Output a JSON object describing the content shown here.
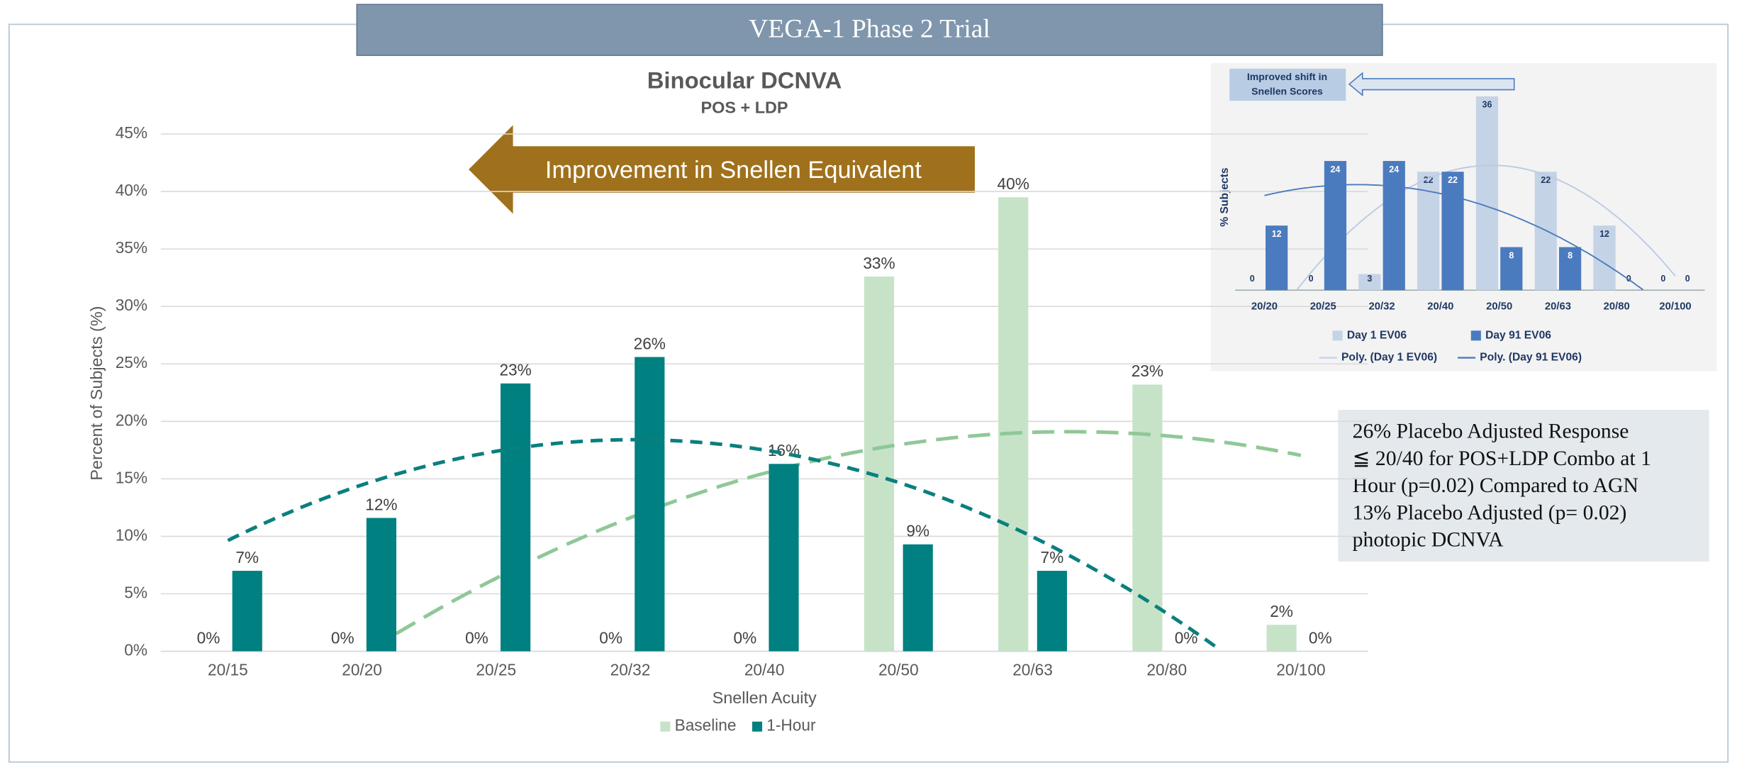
{
  "banner": "VEGA-1 Phase 2 Trial",
  "note": [
    "26% Placebo Adjusted Response",
    "≦ 20/40 for POS+LDP Combo at 1",
    "Hour (p=0.02) Compared to AGN",
    "13% Placebo Adjusted (p= 0.02)",
    "photopic DCNVA"
  ],
  "chart_data": [
    {
      "type": "bar",
      "title": "Binocular DCNVA",
      "subtitle": "POS + LDP",
      "annotation": "Improvement in Snellen Equivalent",
      "x_label": "Snellen Acuity",
      "y_label": "Percent of Subjects (%)",
      "categories": [
        "20/15",
        "20/20",
        "20/25",
        "20/32",
        "20/40",
        "20/50",
        "20/63",
        "20/80",
        "20/100"
      ],
      "series": [
        {
          "name": "Baseline",
          "color": "#c6e3c8",
          "trend_color": "#8fc897",
          "values": [
            0,
            0,
            0,
            0,
            0,
            32.6,
            39.5,
            23.2,
            2.3
          ],
          "value_labels": [
            "0%",
            "0%",
            "0%",
            "0%",
            "0%",
            "33%",
            "40%",
            "23%",
            "2%"
          ]
        },
        {
          "name": "1-Hour",
          "color": "#008080",
          "trend_color": "#0b7f7f",
          "values": [
            7,
            11.6,
            23.3,
            25.6,
            16.3,
            9.3,
            7,
            0,
            0
          ],
          "value_labels": [
            "7%",
            "12%",
            "23%",
            "26%",
            "16%",
            "9%",
            "7%",
            "0%",
            "0%"
          ]
        }
      ],
      "trendline": "poly",
      "ylim": [
        0,
        45
      ],
      "yticks": [
        {
          "value": 0,
          "label": "0%"
        },
        {
          "value": 5,
          "label": "5%"
        },
        {
          "value": 10,
          "label": "10%"
        },
        {
          "value": 15,
          "label": "15%"
        },
        {
          "value": 20,
          "label": "20%"
        },
        {
          "value": 25,
          "label": "25%"
        },
        {
          "value": 30,
          "label": "30%"
        },
        {
          "value": 35,
          "label": "35%"
        },
        {
          "value": 40,
          "label": "40%"
        },
        {
          "value": 45,
          "label": "45%"
        }
      ],
      "grid": true,
      "legend": "bottom"
    },
    {
      "type": "bar",
      "annotation_lines": [
        "Improved shift in",
        "Snellen Scores"
      ],
      "y_label": "% Subjects",
      "categories": [
        "20/20",
        "20/25",
        "20/32",
        "20/40",
        "20/50",
        "20/63",
        "20/80",
        "20/100"
      ],
      "series": [
        {
          "name": "Day 1 EV06",
          "color": "#c5d3e6",
          "trend_name": "Poly. (Day 1 EV06)",
          "values": [
            0,
            0,
            3,
            22,
            36,
            22,
            12,
            0
          ]
        },
        {
          "name": "Day 91 EV06",
          "color": "#4b7bbf",
          "trend_name": "Poly. (Day 91 EV06)",
          "values": [
            12,
            24,
            24,
            22,
            8,
            8,
            0,
            0
          ]
        }
      ],
      "trendline": "poly",
      "ylim": [
        0,
        36
      ],
      "legend": "bottom"
    }
  ]
}
